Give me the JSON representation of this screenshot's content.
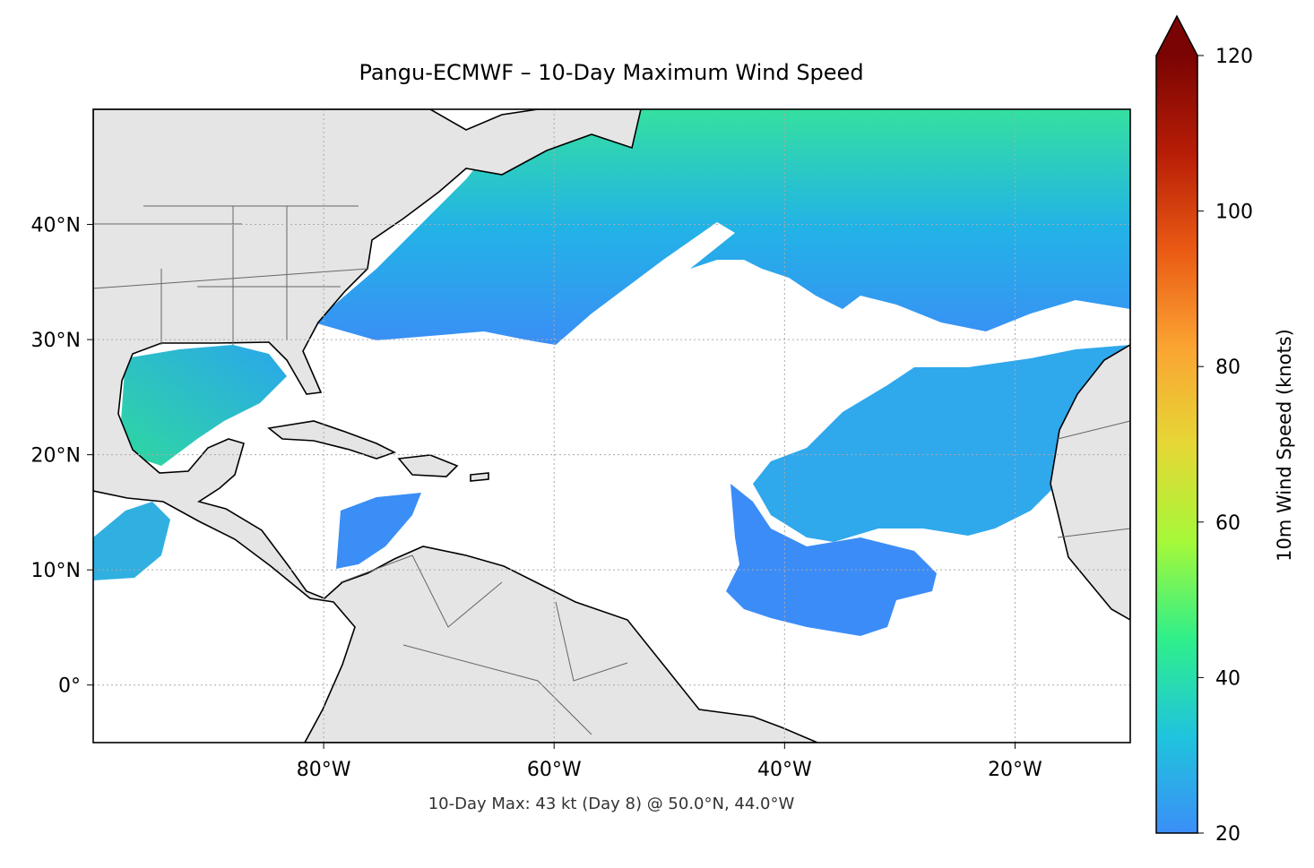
{
  "chart_data": {
    "type": "map",
    "title": "Pangu-ECMWF – 10-Day Maximum Wind Speed",
    "annotation": "10-Day Max: 43 kt (Day 8) @ 50.0°N, 44.0°W",
    "xlim": [
      -100,
      -10
    ],
    "ylim": [
      -5,
      50
    ],
    "xticks": [
      {
        "value": -80,
        "label": "80°W"
      },
      {
        "value": -60,
        "label": "60°W"
      },
      {
        "value": -40,
        "label": "40°W"
      },
      {
        "value": -20,
        "label": "20°W"
      }
    ],
    "yticks": [
      {
        "value": 0,
        "label": "0°"
      },
      {
        "value": 10,
        "label": "10°N"
      },
      {
        "value": 20,
        "label": "20°N"
      },
      {
        "value": 30,
        "label": "30°N"
      },
      {
        "value": 40,
        "label": "40°N"
      }
    ],
    "grid": true,
    "colorbar": {
      "label": "10m Wind Speed (knots)",
      "clim": [
        20,
        120
      ],
      "ticks": [
        20,
        40,
        60,
        80,
        100,
        120
      ],
      "extend": "max",
      "colors": [
        "#3b8ff7",
        "#1fc4dd",
        "#2fef8a",
        "#a6f838",
        "#e6d736",
        "#fba432",
        "#ea5a14",
        "#b71d06",
        "#7a0403"
      ]
    }
  }
}
